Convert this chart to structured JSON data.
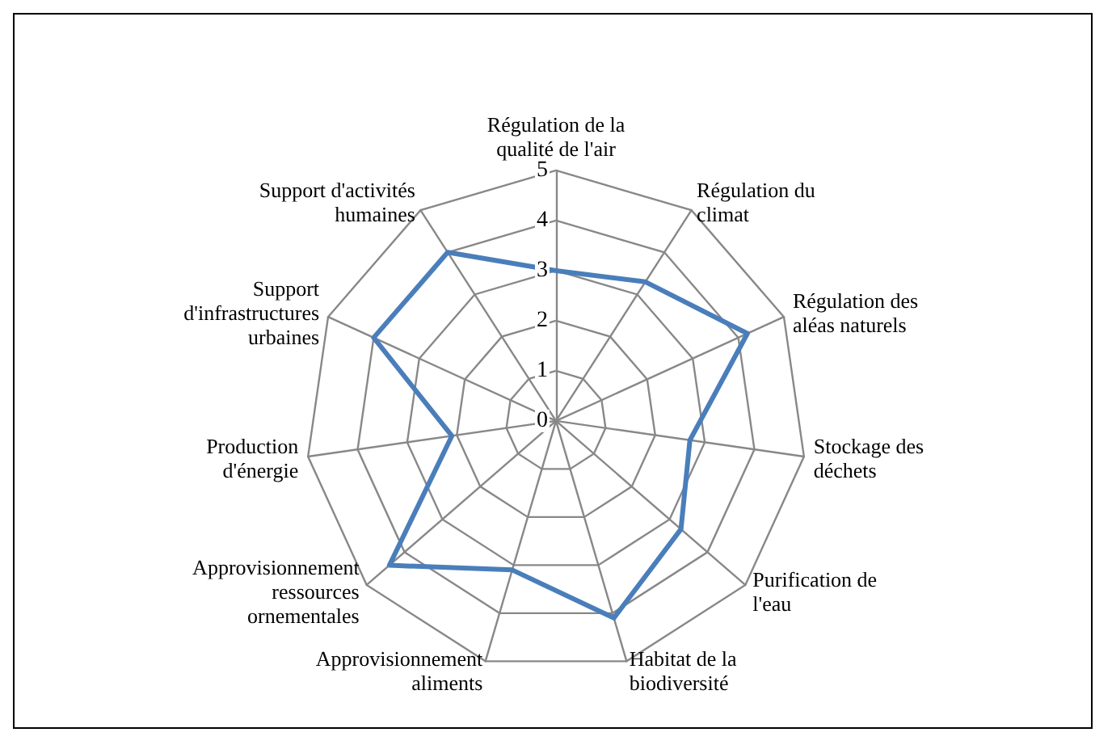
{
  "chart_data": {
    "type": "radar",
    "categories": [
      "Régulation de la qualité de l'air",
      "Régulation du climat",
      "Régulation des aléas naturels",
      "Stockage des déchets",
      "Purification de l'eau",
      "Habitat de la biodiversité",
      "Approvisionnement aliments",
      "Approvisionnement ressources ornementales",
      "Production d'énergie",
      "Support d'infrastructures urbaines",
      "Support d'activités humaines"
    ],
    "series": [
      {
        "color": "#4a7ebb",
        "values": [
          3,
          3.3,
          4.2,
          2.7,
          3.3,
          4.1,
          3.1,
          4.4,
          2.1,
          4,
          4
        ]
      }
    ],
    "ylim": [
      0,
      5
    ],
    "yticks": [
      0,
      1,
      2,
      3,
      4,
      5
    ],
    "marker": "none",
    "line_style": "solid"
  }
}
